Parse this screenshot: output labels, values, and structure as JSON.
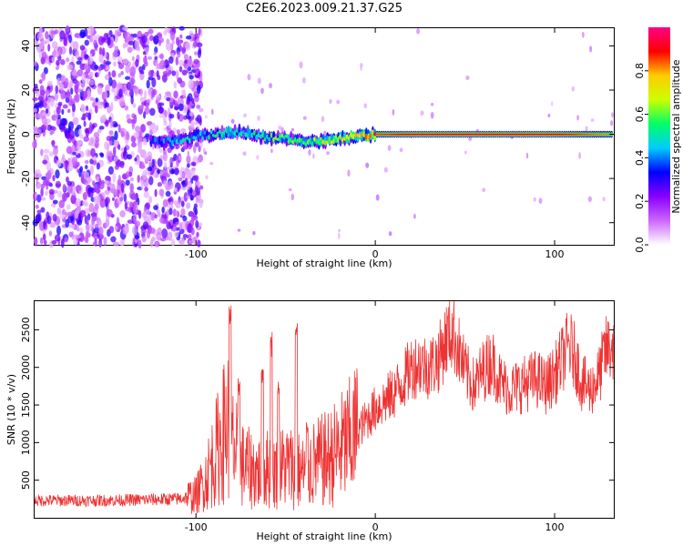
{
  "title": "C2E6.2023.009.21.37.G25",
  "chart_data": [
    {
      "type": "heatmap",
      "xlabel": "Height of straight line (km)",
      "ylabel": "Frequency (Hz)",
      "xlim": [
        -190,
        133
      ],
      "ylim": [
        -50,
        48
      ],
      "xticks": [
        -100,
        0,
        100
      ],
      "yticks": [
        -40,
        -20,
        0,
        20,
        40
      ],
      "grid": false,
      "colorbar": {
        "label": "Normalized spectral amplitude",
        "range": [
          0.0,
          1.0
        ],
        "ticks": [
          0.0,
          0.2,
          0.4,
          0.6,
          0.8
        ],
        "tick_labels": [
          "0.0",
          "0.2",
          "0.4",
          "0.6",
          "0.8"
        ],
        "colors": [
          "#ffffff",
          "#cc66ff",
          "#8800ff",
          "#0000ff",
          "#00ccff",
          "#00ff66",
          "#ccff00",
          "#ffcc00",
          "#ff0000",
          "#ff0088"
        ]
      },
      "features": {
        "noise_region_x": [
          -190,
          -105
        ],
        "ridge": [
          {
            "x": -125,
            "y": -3.5,
            "amp": 0.35
          },
          {
            "x": -110,
            "y": -3.0,
            "amp": 0.45
          },
          {
            "x": -100,
            "y": -1.0,
            "amp": 0.45
          },
          {
            "x": -90,
            "y": 0.0,
            "amp": 0.5
          },
          {
            "x": -80,
            "y": 1.0,
            "amp": 0.5
          },
          {
            "x": -70,
            "y": 0.5,
            "amp": 0.5
          },
          {
            "x": -60,
            "y": -1.5,
            "amp": 0.55
          },
          {
            "x": -50,
            "y": -2.0,
            "amp": 0.55
          },
          {
            "x": -40,
            "y": -3.5,
            "amp": 0.6
          },
          {
            "x": -30,
            "y": -3.0,
            "amp": 0.65
          },
          {
            "x": -20,
            "y": -2.0,
            "amp": 0.7
          },
          {
            "x": -10,
            "y": -1.0,
            "amp": 0.75
          },
          {
            "x": 0,
            "y": 0.0,
            "amp": 0.85
          },
          {
            "x": 20,
            "y": 0.0,
            "amp": 0.9
          },
          {
            "x": 60,
            "y": 0.0,
            "amp": 0.9
          },
          {
            "x": 100,
            "y": 0.0,
            "amp": 0.9
          },
          {
            "x": 133,
            "y": 0.0,
            "amp": 0.8
          }
        ]
      }
    },
    {
      "type": "line",
      "xlabel": "Height of straight line (km)",
      "ylabel": "SNR (10 * v/v)",
      "xlim": [
        -190,
        133
      ],
      "ylim": [
        0,
        2880
      ],
      "xticks": [
        -100,
        0,
        100
      ],
      "yticks": [
        500,
        1000,
        1500,
        2000,
        2500
      ],
      "color": "#ee3333",
      "grid": false,
      "series": [
        {
          "x": [
            -190,
            -170,
            -150,
            -130,
            -110,
            -100,
            -95,
            -90,
            -85,
            -82,
            -80,
            -75,
            -70,
            -65,
            -60,
            -55,
            -50,
            -45,
            -40,
            -35,
            -30,
            -25,
            -20,
            -15,
            -10,
            -5,
            0,
            5,
            10,
            15,
            20,
            25,
            30,
            35,
            40,
            43,
            45,
            50,
            55,
            60,
            65,
            70,
            75,
            80,
            85,
            90,
            95,
            100,
            105,
            108,
            112,
            115,
            120,
            125,
            128,
            133
          ],
          "y": [
            230,
            230,
            230,
            240,
            250,
            300,
            500,
            800,
            1100,
            1300,
            1000,
            700,
            650,
            600,
            650,
            620,
            700,
            650,
            600,
            700,
            750,
            800,
            900,
            1000,
            1150,
            1300,
            1450,
            1550,
            1650,
            1800,
            2000,
            2050,
            2000,
            2100,
            2400,
            2500,
            2350,
            1950,
            1750,
            1950,
            2100,
            1800,
            1700,
            1750,
            1800,
            1850,
            1750,
            1900,
            2150,
            2300,
            2100,
            1800,
            1700,
            1900,
            2200,
            2300
          ]
        }
      ],
      "spikes": [
        {
          "x": -81,
          "y": 2850
        },
        {
          "x": -76,
          "y": 1900
        },
        {
          "x": -63,
          "y": 2100
        },
        {
          "x": -58,
          "y": 2500
        },
        {
          "x": -54,
          "y": 1900
        },
        {
          "x": -44,
          "y": 2650
        },
        {
          "x": -38,
          "y": 1300
        }
      ]
    }
  ]
}
